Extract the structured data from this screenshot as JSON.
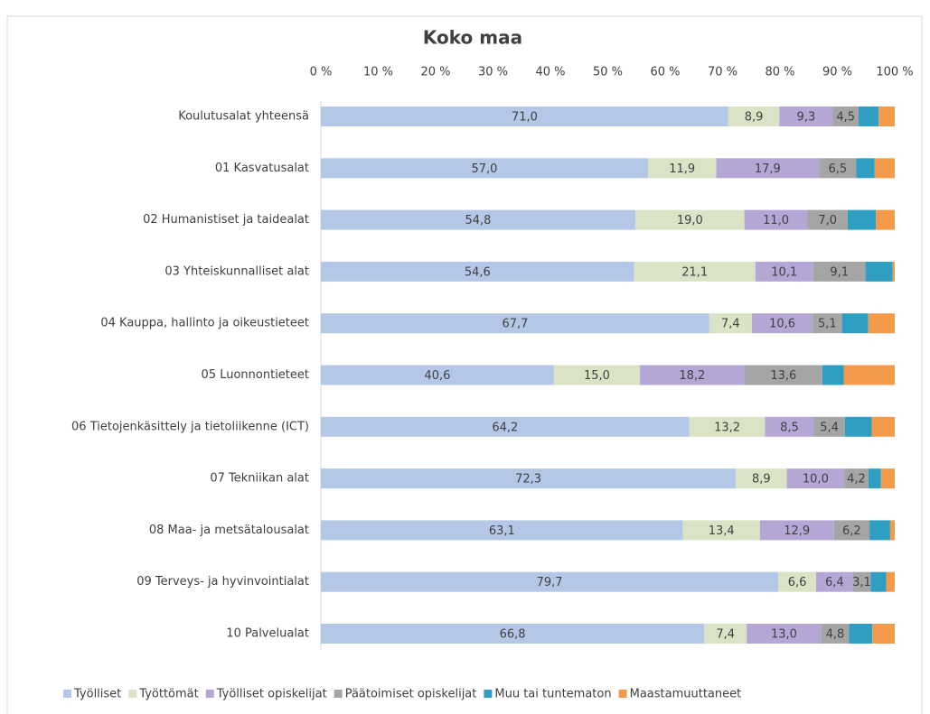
{
  "chart_data": {
    "type": "stacked-bar-horizontal",
    "title": "Koko maa",
    "categories": [
      "Koulutusalat yhteensä",
      "01 Kasvatusalat",
      "02 Humanistiset ja taidealat",
      "03 Yhteiskunnalliset alat",
      "04 Kauppa, hallinto ja oikeustieteet",
      "05 Luonnontieteet",
      "06 Tietojenkäsittely ja tietoliikenne (ICT)",
      "07 Tekniikan alat",
      "08 Maa- ja metsätalousalat",
      "09 Terveys- ja hyvinvointialat",
      "10 Palvelualat"
    ],
    "series": [
      {
        "name": "Työlliset",
        "color": "#b4c7e7",
        "values": [
          71.0,
          57.0,
          54.8,
          54.6,
          67.7,
          40.6,
          64.2,
          72.3,
          63.1,
          79.7,
          66.8
        ],
        "value_labels": [
          "71,0",
          "57,0",
          "54,8",
          "54,6",
          "67,7",
          "40,6",
          "64,2",
          "72,3",
          "63,1",
          "79,7",
          "66,8"
        ]
      },
      {
        "name": "Työttömät",
        "color": "#dae3c6",
        "values": [
          8.9,
          11.9,
          19.0,
          21.1,
          7.4,
          15.0,
          13.2,
          8.9,
          13.4,
          6.6,
          7.4
        ],
        "value_labels": [
          "8,9",
          "11,9",
          "19,0",
          "21,1",
          "7,4",
          "15,0",
          "13,2",
          "8,9",
          "13,4",
          "6,6",
          "7,4"
        ]
      },
      {
        "name": "Työlliset opiskelijat",
        "color": "#b5a6d5",
        "values": [
          9.3,
          17.9,
          11.0,
          10.1,
          10.6,
          18.2,
          8.5,
          10.0,
          12.9,
          6.4,
          13.0
        ],
        "value_labels": [
          "9,3",
          "17,9",
          "11,0",
          "10,1",
          "10,6",
          "18,2",
          "8,5",
          "10,0",
          "12,9",
          "6,4",
          "13,0"
        ]
      },
      {
        "name": "Päätoimiset opiskelijat",
        "color": "#a5a5a5",
        "values": [
          4.5,
          6.5,
          7.0,
          9.1,
          5.1,
          13.6,
          5.4,
          4.2,
          6.2,
          3.1,
          4.8
        ],
        "value_labels": [
          "4,5",
          "6,5",
          "7,0",
          "9,1",
          "5,1",
          "13,6",
          "5,4",
          "4,2",
          "6,2",
          "3,1",
          "4,8"
        ]
      },
      {
        "name": "Muu tai tuntematon",
        "color": "#2e9fc2",
        "values": [
          3.5,
          3.2,
          4.9,
          4.7,
          4.6,
          3.7,
          4.7,
          2.2,
          3.6,
          2.7,
          4.1
        ]
      },
      {
        "name": "Maastamuuttaneet",
        "color": "#f59a4b",
        "values": [
          2.8,
          3.5,
          3.3,
          0.4,
          4.6,
          8.9,
          4.0,
          2.4,
          0.8,
          1.5,
          3.9
        ]
      }
    ],
    "xlim": [
      0,
      100
    ],
    "xticks": [
      {
        "value": 0,
        "label": "0 %"
      },
      {
        "value": 10,
        "label": "10 %"
      },
      {
        "value": 20,
        "label": "20 %"
      },
      {
        "value": 30,
        "label": "30 %"
      },
      {
        "value": 40,
        "label": "40 %"
      },
      {
        "value": 50,
        "label": "50 %"
      },
      {
        "value": 60,
        "label": "60 %"
      },
      {
        "value": 70,
        "label": "70 %"
      },
      {
        "value": 80,
        "label": "80 %"
      },
      {
        "value": 90,
        "label": "90 %"
      },
      {
        "value": 100,
        "label": "100 %"
      }
    ],
    "legend": "bottom"
  }
}
